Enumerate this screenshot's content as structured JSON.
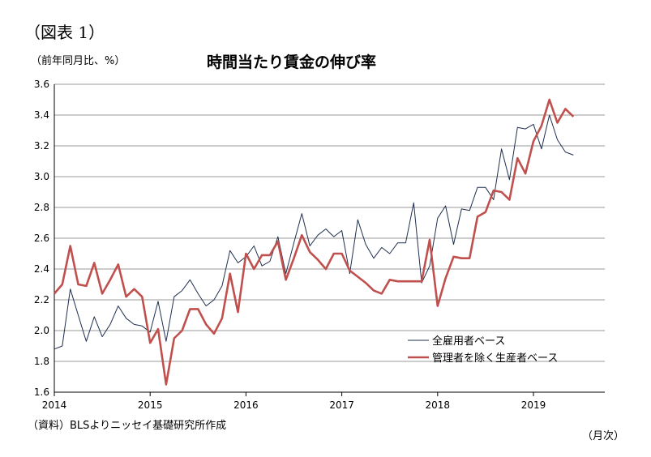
{
  "header": {
    "figure_label": "（図表 1）",
    "unit_label": "（前年同月比、%）",
    "title": "時間当たり賃金の伸び率"
  },
  "footer": {
    "source": "（資料）BLSよりニッセイ基礎研究所作成",
    "x_unit": "（月次）"
  },
  "colors": {
    "series_all": "#1f2f4f",
    "series_nonmgr": "#c0504d",
    "grid": "#9a9a9a",
    "axis": "#000000"
  },
  "chart_data": {
    "type": "line",
    "title": "時間当たり賃金の伸び率",
    "ylabel": "（前年同月比、%）",
    "xlabel": "（月次）",
    "ylim": [
      1.6,
      3.6
    ],
    "yticks": [
      "1.6",
      "1.8",
      "2.0",
      "2.2",
      "2.4",
      "2.6",
      "2.8",
      "3.0",
      "3.2",
      "3.4",
      "3.6"
    ],
    "xticks": [
      "2014",
      "2015",
      "2016",
      "2017",
      "2018",
      "2019"
    ],
    "grid": true,
    "legend_position": "bottom-right",
    "x": [
      "2014-01",
      "2014-02",
      "2014-03",
      "2014-04",
      "2014-05",
      "2014-06",
      "2014-07",
      "2014-08",
      "2014-09",
      "2014-10",
      "2014-11",
      "2014-12",
      "2015-01",
      "2015-02",
      "2015-03",
      "2015-04",
      "2015-05",
      "2015-06",
      "2015-07",
      "2015-08",
      "2015-09",
      "2015-10",
      "2015-11",
      "2015-12",
      "2016-01",
      "2016-02",
      "2016-03",
      "2016-04",
      "2016-05",
      "2016-06",
      "2016-07",
      "2016-08",
      "2016-09",
      "2016-10",
      "2016-11",
      "2016-12",
      "2017-01",
      "2017-02",
      "2017-03",
      "2017-04",
      "2017-05",
      "2017-06",
      "2017-07",
      "2017-08",
      "2017-09",
      "2017-10",
      "2017-11",
      "2017-12",
      "2018-01",
      "2018-02",
      "2018-03",
      "2018-04",
      "2018-05",
      "2018-06",
      "2018-07",
      "2018-08",
      "2018-09",
      "2018-10",
      "2018-11",
      "2018-12",
      "2019-01",
      "2019-02",
      "2019-03",
      "2019-04",
      "2019-05",
      "2019-06"
    ],
    "series": [
      {
        "name": "全雇用者ベース",
        "values": [
          1.88,
          1.9,
          2.27,
          2.1,
          1.93,
          2.09,
          1.96,
          2.04,
          2.16,
          2.08,
          2.04,
          2.03,
          1.99,
          2.19,
          1.93,
          2.22,
          2.26,
          2.33,
          2.24,
          2.16,
          2.2,
          2.29,
          2.52,
          2.44,
          2.48,
          2.55,
          2.42,
          2.45,
          2.61,
          2.37,
          2.57,
          2.76,
          2.55,
          2.62,
          2.66,
          2.61,
          2.65,
          2.37,
          2.72,
          2.56,
          2.47,
          2.54,
          2.5,
          2.57,
          2.57,
          2.83,
          2.31,
          2.42,
          2.73,
          2.81,
          2.56,
          2.79,
          2.78,
          2.93,
          2.93,
          2.85,
          3.18,
          2.98,
          3.32,
          3.31,
          3.34,
          3.18,
          3.4,
          3.24,
          3.16,
          3.14
        ]
      },
      {
        "name": "管理者を除く生産者ベース",
        "values": [
          2.24,
          2.3,
          2.55,
          2.3,
          2.29,
          2.44,
          2.24,
          2.33,
          2.43,
          2.22,
          2.27,
          2.22,
          1.92,
          2.01,
          1.65,
          1.95,
          2.0,
          2.14,
          2.14,
          2.04,
          1.98,
          2.08,
          2.37,
          2.12,
          2.5,
          2.4,
          2.49,
          2.49,
          2.58,
          2.33,
          2.47,
          2.62,
          2.51,
          2.46,
          2.4,
          2.5,
          2.5,
          2.39,
          2.35,
          2.31,
          2.26,
          2.24,
          2.33,
          2.32,
          2.32,
          2.32,
          2.32,
          2.59,
          2.16,
          2.34,
          2.48,
          2.47,
          2.47,
          2.74,
          2.77,
          2.91,
          2.9,
          2.85,
          3.12,
          3.02,
          3.23,
          3.33,
          3.5,
          3.35,
          3.44,
          3.39
        ]
      }
    ]
  }
}
